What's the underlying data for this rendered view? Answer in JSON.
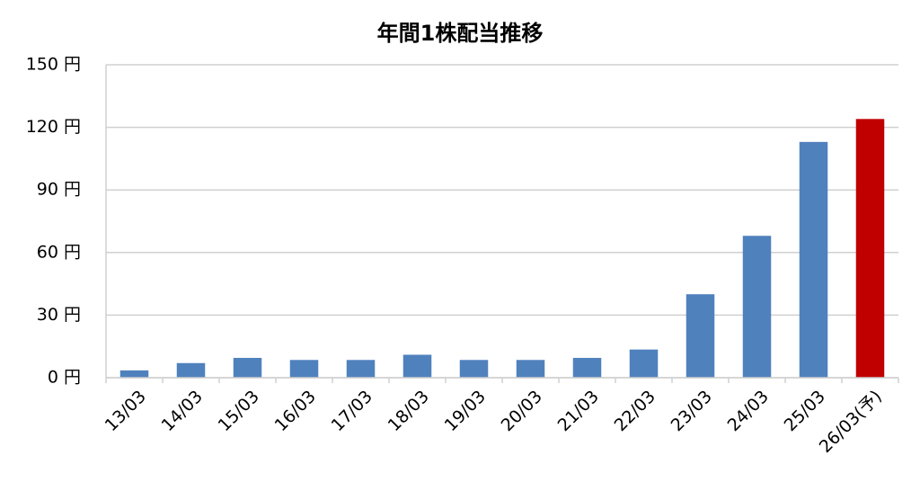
{
  "chart_data": {
    "type": "bar",
    "title": "年間1株配当推移",
    "categories": [
      "13/03",
      "14/03",
      "15/03",
      "16/03",
      "17/03",
      "18/03",
      "19/03",
      "20/03",
      "21/03",
      "22/03",
      "23/03",
      "24/03",
      "25/03",
      "26/03(予)"
    ],
    "values": [
      3.5,
      7,
      9.5,
      8.5,
      8.5,
      11,
      8.5,
      8.5,
      9.5,
      13.5,
      40,
      68,
      113,
      124
    ],
    "colors": [
      "#4f81bd",
      "#4f81bd",
      "#4f81bd",
      "#4f81bd",
      "#4f81bd",
      "#4f81bd",
      "#4f81bd",
      "#4f81bd",
      "#4f81bd",
      "#4f81bd",
      "#4f81bd",
      "#4f81bd",
      "#4f81bd",
      "#c00000"
    ],
    "ylim": [
      0,
      150
    ],
    "yticks": [
      {
        "value": 0,
        "label": "0 円"
      },
      {
        "value": 30,
        "label": "30 円"
      },
      {
        "value": 60,
        "label": "60 円"
      },
      {
        "value": 90,
        "label": "90 円"
      },
      {
        "value": 120,
        "label": "120 円"
      },
      {
        "value": 150,
        "label": "150 円"
      }
    ],
    "grid": true
  }
}
